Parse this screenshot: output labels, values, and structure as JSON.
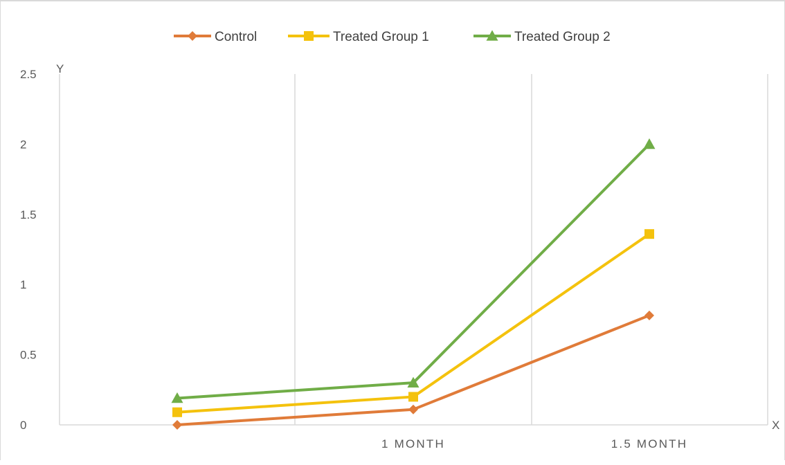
{
  "chart_data": {
    "type": "line",
    "title": "",
    "xlabel": "X",
    "ylabel": "Y",
    "categories": [
      "",
      "1 MONTH",
      "1.5 MONTH"
    ],
    "ylim": [
      0,
      2.5
    ],
    "yticks": [
      "0",
      "0.5",
      "1",
      "1.5",
      "2",
      "2.5"
    ],
    "yticks_values": [
      0,
      0.5,
      1,
      1.5,
      2,
      2.5
    ],
    "grid": "vertical",
    "legend_position": "top",
    "series": [
      {
        "name": "Control",
        "values": [
          0.0,
          0.11,
          0.78
        ],
        "color": "#e07b39",
        "marker": "diamond"
      },
      {
        "name": "Treated Group 1",
        "values": [
          0.09,
          0.2,
          1.36
        ],
        "color": "#f4c20d",
        "marker": "square"
      },
      {
        "name": "Treated Group 2",
        "values": [
          0.19,
          0.3,
          2.0
        ],
        "color": "#70ad47",
        "marker": "triangle"
      }
    ]
  }
}
